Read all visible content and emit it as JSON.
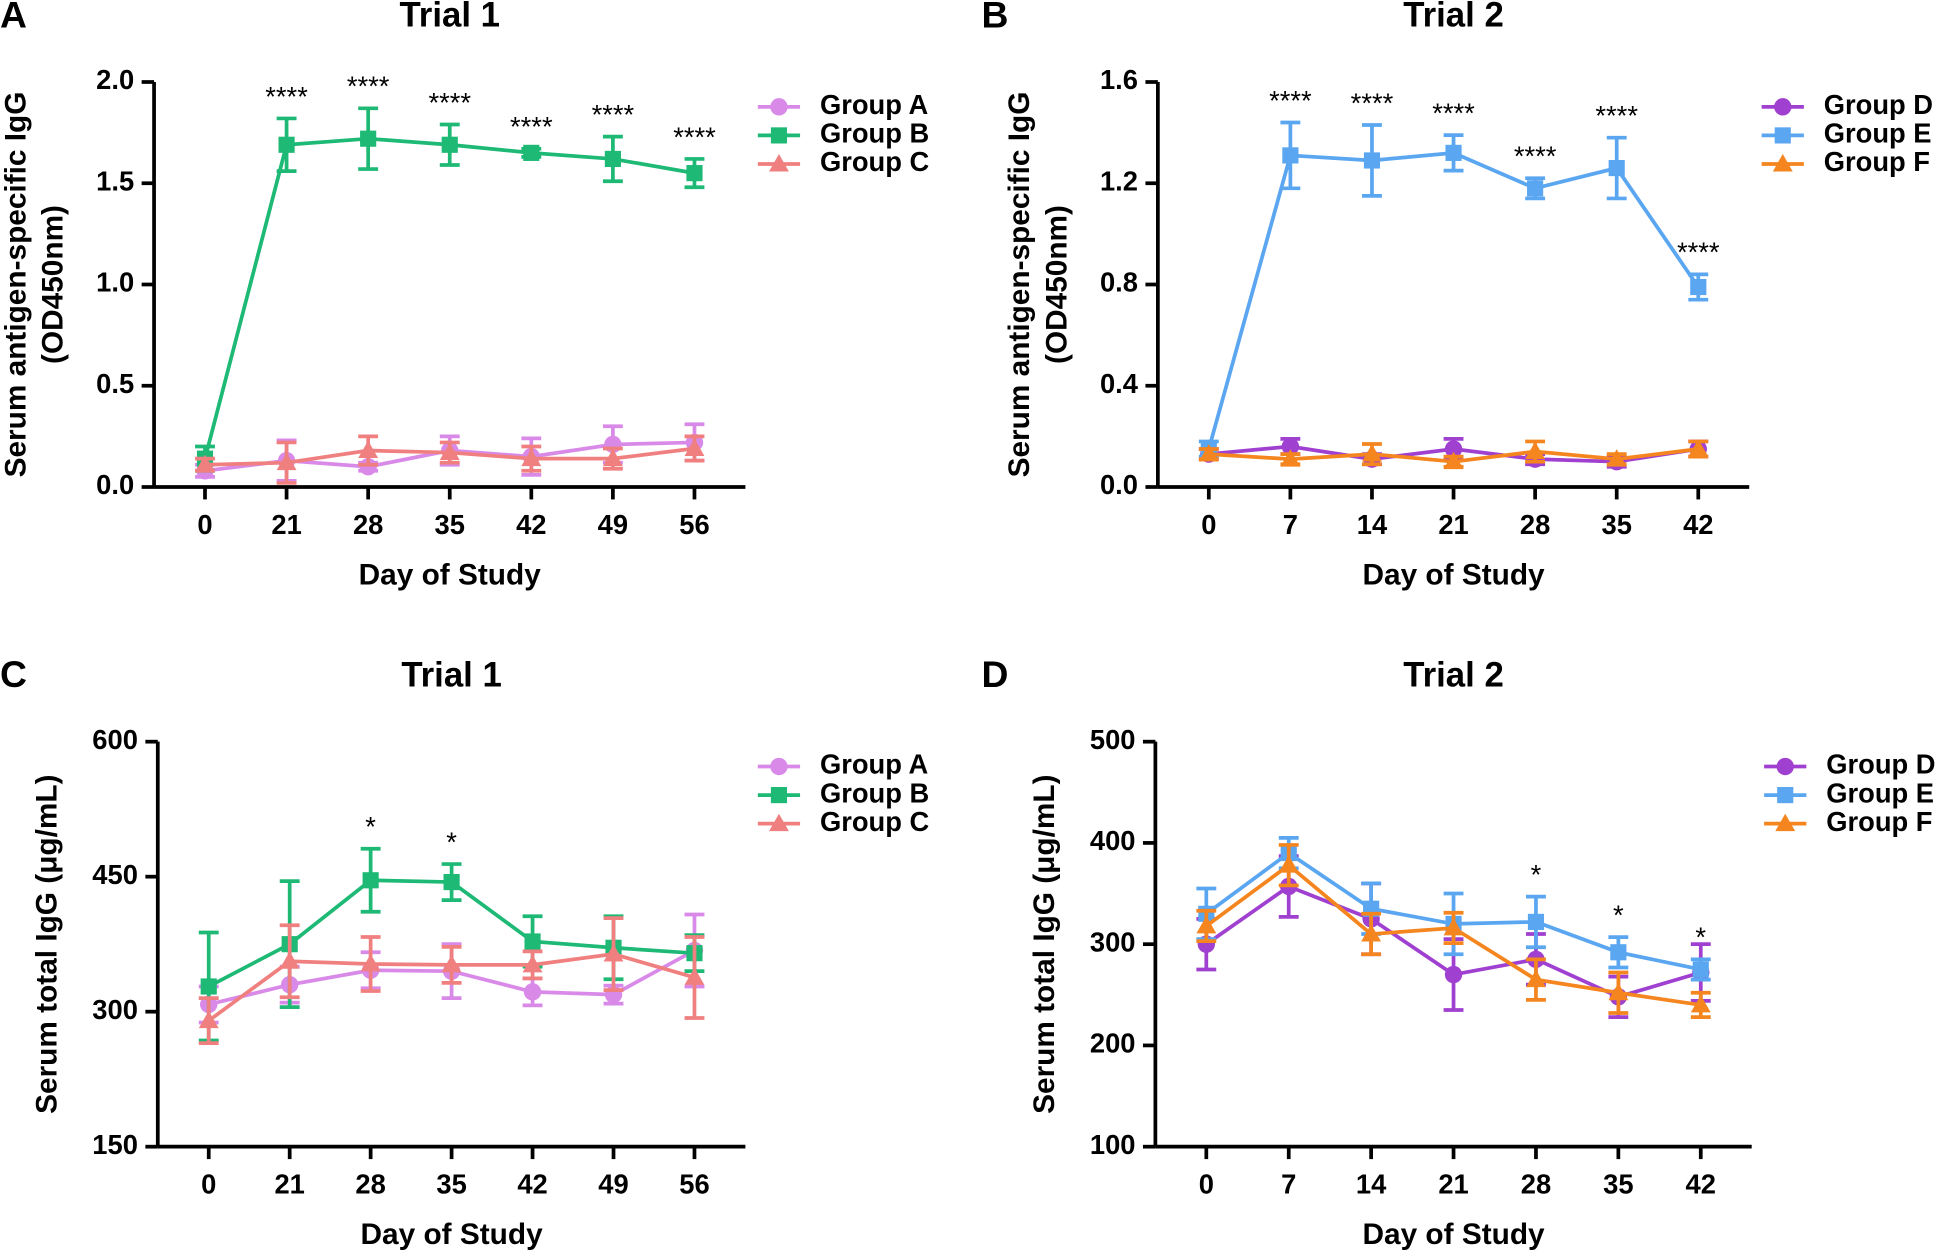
{
  "chart_data": [
    {
      "type": "line",
      "panel": "A",
      "title": "Trial 1",
      "xlabel": "Day of Study",
      "ylabel": [
        "Serum antigen-specific IgG",
        "(OD450nm)"
      ],
      "categories": [
        "0",
        "21",
        "28",
        "35",
        "42",
        "49",
        "56"
      ],
      "ylim": [
        0,
        2
      ],
      "yticks": [
        {
          "value": 0,
          "label": "0.0"
        },
        {
          "value": 0.5,
          "label": "0.5"
        },
        {
          "value": 1,
          "label": "1.0"
        },
        {
          "value": 1.5,
          "label": "1.5"
        },
        {
          "value": 2,
          "label": "2.0"
        }
      ],
      "series": [
        {
          "name": "Group A",
          "color": "#d98ae8",
          "marker": "circle",
          "values": [
            0.08,
            0.13,
            0.1,
            0.18,
            0.15,
            0.21,
            0.22
          ],
          "errors": [
            0.03,
            0.1,
            0.02,
            0.07,
            0.09,
            0.09,
            0.09
          ]
        },
        {
          "name": "Group B",
          "color": "#1db975",
          "marker": "square",
          "values": [
            0.14,
            1.69,
            1.72,
            1.69,
            1.65,
            1.62,
            1.55
          ],
          "errors": [
            0.06,
            0.13,
            0.15,
            0.1,
            0.02,
            0.11,
            0.07
          ],
          "significance": [
            null,
            "****",
            "****",
            "****",
            "****",
            "****",
            "****"
          ]
        },
        {
          "name": "Group C",
          "color": "#f08080",
          "marker": "triangle",
          "values": [
            0.11,
            0.12,
            0.18,
            0.17,
            0.14,
            0.14,
            0.19
          ],
          "errors": [
            0.03,
            0.1,
            0.07,
            0.05,
            0.06,
            0.05,
            0.06
          ]
        }
      ]
    },
    {
      "type": "line",
      "panel": "B",
      "title": "Trial 2",
      "xlabel": "Day of Study",
      "ylabel": [
        "Serum antigen-specific IgG",
        "(OD450nm)"
      ],
      "categories": [
        "0",
        "7",
        "14",
        "21",
        "28",
        "35",
        "42"
      ],
      "ylim": [
        0,
        1.6
      ],
      "yticks": [
        {
          "value": 0,
          "label": "0.0"
        },
        {
          "value": 0.4,
          "label": "0.4"
        },
        {
          "value": 0.8,
          "label": "0.8"
        },
        {
          "value": 1.2,
          "label": "1.2"
        },
        {
          "value": 1.6,
          "label": "1.6"
        }
      ],
      "series": [
        {
          "name": "Group D",
          "color": "#a040d0",
          "marker": "circle",
          "values": [
            0.13,
            0.16,
            0.11,
            0.15,
            0.11,
            0.1,
            0.15
          ],
          "errors": [
            0.02,
            0.03,
            0.02,
            0.04,
            0.02,
            0.02,
            0.03
          ]
        },
        {
          "name": "Group E",
          "color": "#5aa6f0",
          "marker": "square",
          "values": [
            0.15,
            1.31,
            1.29,
            1.32,
            1.18,
            1.26,
            0.79
          ],
          "errors": [
            0.03,
            0.13,
            0.14,
            0.07,
            0.04,
            0.12,
            0.05
          ],
          "significance": [
            null,
            "****",
            "****",
            "****",
            "****",
            "****",
            "****"
          ]
        },
        {
          "name": "Group F",
          "color": "#f5851f",
          "marker": "triangle",
          "values": [
            0.13,
            0.11,
            0.13,
            0.1,
            0.14,
            0.11,
            0.15
          ],
          "errors": [
            0.02,
            0.02,
            0.04,
            0.02,
            0.04,
            0.02,
            0.03
          ]
        }
      ]
    },
    {
      "type": "line",
      "panel": "C",
      "title": "Trial 1",
      "xlabel": "Day of Study",
      "ylabel": "Serum total IgG (μg/mL)",
      "categories": [
        "0",
        "21",
        "28",
        "35",
        "42",
        "49",
        "56"
      ],
      "ylim": [
        150,
        600
      ],
      "yticks": [
        150,
        300,
        450,
        600
      ],
      "series": [
        {
          "name": "Group A",
          "color": "#d98ae8",
          "marker": "circle",
          "values": [
            308,
            330,
            346,
            345,
            322,
            319,
            368
          ],
          "errors": [
            20,
            20,
            20,
            30,
            15,
            10,
            40
          ]
        },
        {
          "name": "Group B",
          "color": "#1db975",
          "marker": "square",
          "values": [
            328,
            375,
            446,
            444,
            378,
            371,
            365
          ],
          "errors": [
            60,
            70,
            35,
            20,
            28,
            35,
            20
          ],
          "significance": [
            null,
            null,
            "*",
            "*",
            null,
            null,
            null
          ]
        },
        {
          "name": "Group C",
          "color": "#f08080",
          "marker": "triangle",
          "values": [
            290,
            356,
            353,
            352,
            352,
            364,
            338
          ],
          "errors": [
            25,
            40,
            30,
            20,
            15,
            40,
            45
          ]
        }
      ]
    },
    {
      "type": "line",
      "panel": "D",
      "title": "Trial 2",
      "xlabel": "Day of Study",
      "ylabel": "Serum total IgG (μg/mL)",
      "categories": [
        "0",
        "7",
        "14",
        "21",
        "28",
        "35",
        "42"
      ],
      "ylim": [
        100,
        500
      ],
      "yticks": [
        100,
        200,
        300,
        400,
        500
      ],
      "series": [
        {
          "name": "Group D",
          "color": "#a040d0",
          "marker": "circle",
          "values": [
            300,
            357,
            325,
            270,
            285,
            248,
            272
          ],
          "errors": [
            25,
            30,
            35,
            35,
            25,
            20,
            28
          ]
        },
        {
          "name": "Group E",
          "color": "#5aa6f0",
          "marker": "square",
          "values": [
            330,
            390,
            335,
            320,
            322,
            292,
            275
          ],
          "errors": [
            25,
            15,
            25,
            30,
            25,
            15,
            10
          ],
          "significance": [
            null,
            null,
            null,
            null,
            "*",
            "*",
            "*"
          ]
        },
        {
          "name": "Group F",
          "color": "#f5851f",
          "marker": "triangle",
          "values": [
            318,
            378,
            310,
            316,
            265,
            252,
            240
          ],
          "errors": [
            15,
            20,
            20,
            15,
            20,
            20,
            12
          ]
        }
      ]
    }
  ]
}
